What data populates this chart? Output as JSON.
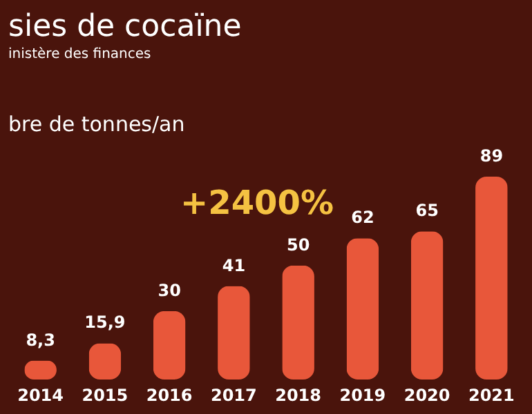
{
  "chart_data": {
    "type": "bar",
    "title": "sies de cocaïne",
    "subtitle": "inistère des finances",
    "ylabel": "bre de tonnes/an",
    "categories": [
      "2014",
      "2015",
      "2016",
      "2017",
      "2018",
      "2019",
      "2020",
      "2021"
    ],
    "values": [
      8.3,
      15.9,
      30,
      41,
      50,
      62,
      65,
      89
    ],
    "value_labels": [
      "8,3",
      "15,9",
      "30",
      "41",
      "50",
      "62",
      "65",
      "89"
    ],
    "color": "#e8573a",
    "tick_labels": "x",
    "annotations": [
      "+2400%"
    ]
  }
}
